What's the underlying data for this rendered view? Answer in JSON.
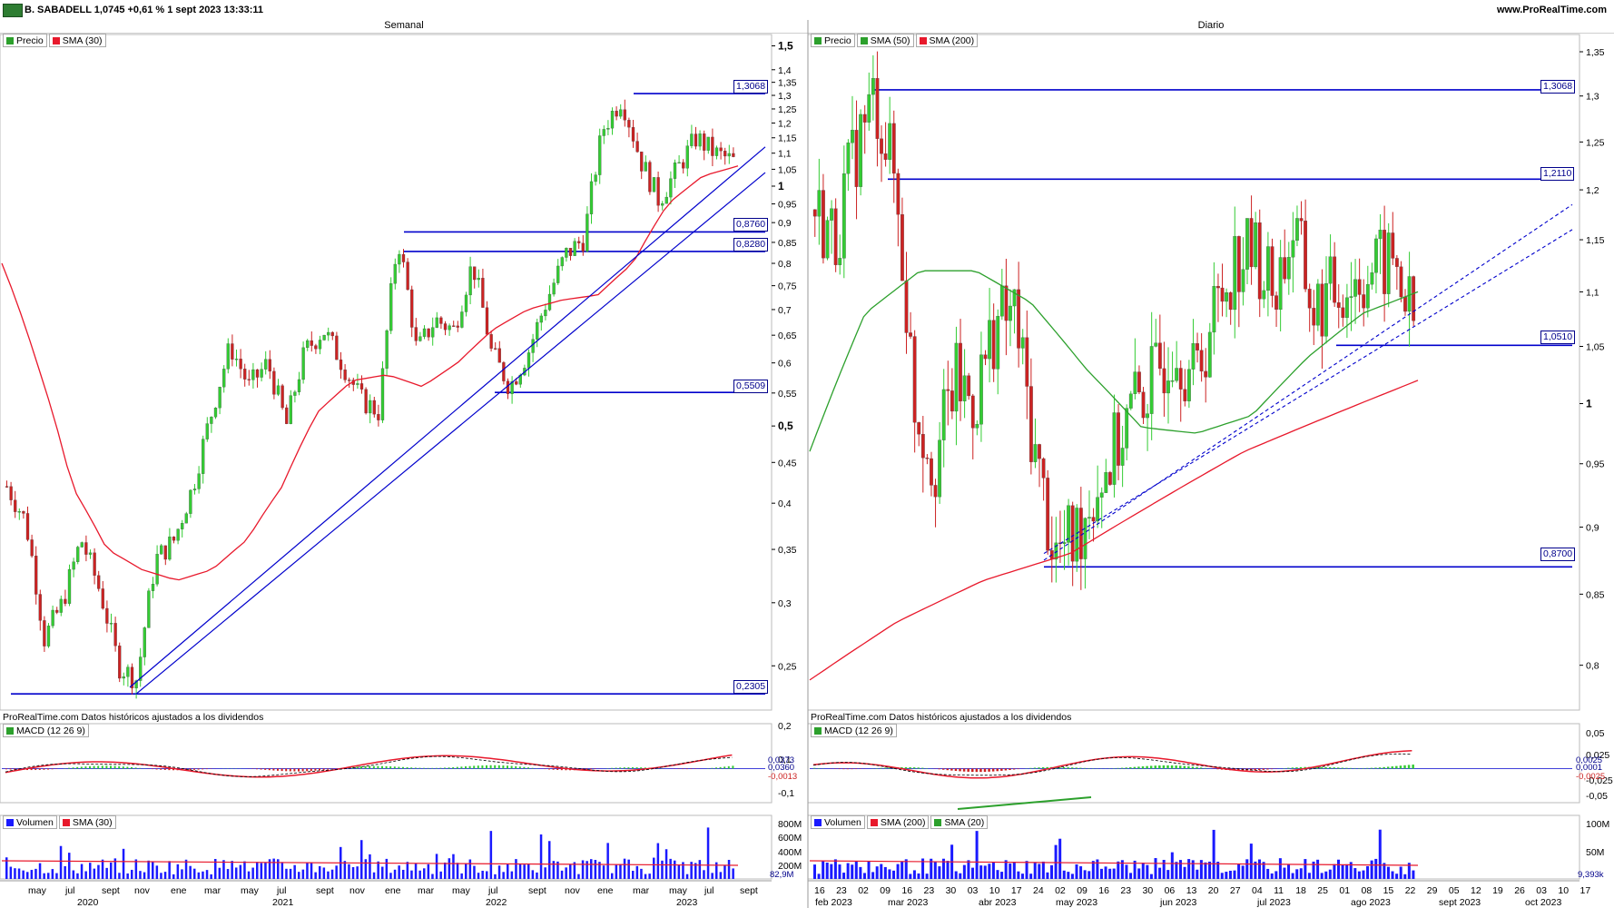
{
  "header": {
    "instrument_line": "B. SABADELL 1,0745 +0,61 % 1 sept 2023 13:33:11",
    "site": "www.ProRealTime.com"
  },
  "source_note": "ProRealTime.com Datos históricos ajustados a los dividendos",
  "colors": {
    "up": "#33cc33",
    "down": "#cc2222",
    "sma_red": "#e8192c",
    "sma_green": "#2ca02c",
    "hline": "#0000cc",
    "volume": "#1a1aff"
  },
  "weekly": {
    "panel_title": "Semanal",
    "legend": [
      "Precio",
      "SMA (30)"
    ],
    "price_axis": [
      "1,5",
      "1,4",
      "1,35",
      "1,3",
      "1,25",
      "1,2",
      "1,15",
      "1,1",
      "1,05",
      "1",
      "0,95",
      "0,9",
      "0,85",
      "0,8",
      "0,75",
      "0,7",
      "0,65",
      "0,6",
      "0,55",
      "0,5",
      "0,45",
      "0,4",
      "0,35",
      "0,3",
      "0,25"
    ],
    "hlines": [
      "1,3068",
      "0,8760",
      "0,8280",
      "0,5509",
      "0,2305"
    ],
    "macd_legend": "MACD (12 26 9)",
    "macd_axis": [
      "0,2",
      "0,1",
      "-0,1"
    ],
    "macd_labels": [
      "0,0373",
      "0,0360",
      "-0,0013"
    ],
    "volume_legend": [
      "Volumen",
      "SMA (30)"
    ],
    "volume_axis": [
      "800M",
      "600M",
      "400M",
      "200M"
    ],
    "volume_last": "82,9M",
    "months": [
      "may",
      "jul",
      "sept",
      "nov",
      "ene",
      "mar",
      "may",
      "jul",
      "sept",
      "nov",
      "ene",
      "mar",
      "may",
      "jul",
      "sept",
      "nov",
      "ene",
      "mar",
      "may",
      "jul",
      "sept"
    ],
    "years": [
      "2020",
      "2021",
      "2022",
      "2023"
    ]
  },
  "daily": {
    "panel_title": "Diario",
    "legend": [
      "Precio",
      "SMA (50)",
      "SMA (200)"
    ],
    "price_axis": [
      "1,35",
      "1,3",
      "1,25",
      "1,2",
      "1,15",
      "1,1",
      "1,05",
      "1",
      "0,95",
      "0,9",
      "0,85",
      "0,8"
    ],
    "hlines": [
      "1,3068",
      "1,2110",
      "1,0510",
      "0,8700"
    ],
    "macd_legend": "MACD (12 26 9)",
    "macd_axis": [
      "0,05",
      "0,025",
      "-0,025",
      "-0,05"
    ],
    "macd_labels": [
      "0,0025",
      "0,0001",
      "-0,0025"
    ],
    "volume_legend": [
      "Volumen",
      "SMA (200)",
      "SMA (20)"
    ],
    "volume_axis": [
      "100M",
      "50M"
    ],
    "volume_last": "9,393k",
    "days": [
      "16",
      "23",
      "02",
      "09",
      "16",
      "23",
      "30",
      "03",
      "10",
      "17",
      "24",
      "02",
      "09",
      "16",
      "23",
      "30",
      "06",
      "13",
      "20",
      "27",
      "04",
      "11",
      "18",
      "25",
      "01",
      "08",
      "15",
      "22",
      "29",
      "05",
      "12",
      "19",
      "26",
      "03",
      "10",
      "17"
    ],
    "months": [
      "feb 2023",
      "mar 2023",
      "abr 2023",
      "may 2023",
      "jun 2023",
      "jul 2023",
      "ago 2023",
      "sept 2023",
      "oct 2023"
    ]
  },
  "chart_data": [
    {
      "type": "candlestick",
      "title": "Semanal",
      "scale": "log",
      "ylim": [
        0.22,
        1.55
      ],
      "series": [
        {
          "name": "Precio",
          "anchor_values": [
            0.42,
            0.38,
            0.27,
            0.3,
            0.36,
            0.31,
            0.25,
            0.24,
            0.34,
            0.36,
            0.42,
            0.52,
            0.63,
            0.56,
            0.6,
            0.5,
            0.62,
            0.66,
            0.6,
            0.54,
            0.52,
            0.86,
            0.62,
            0.68,
            0.66,
            0.8,
            0.62,
            0.56,
            0.62,
            0.72,
            0.82,
            0.86,
            1.18,
            1.29,
            1.08,
            0.96,
            1.05,
            1.15,
            1.1,
            1.0745
          ]
        },
        {
          "name": "SMA (30)",
          "anchor_values": [
            0.8,
            0.6,
            0.42,
            0.35,
            0.33,
            0.32,
            0.33,
            0.36,
            0.42,
            0.52,
            0.57,
            0.58,
            0.56,
            0.6,
            0.66,
            0.7,
            0.72,
            0.73,
            0.8,
            0.95,
            1.03,
            1.06
          ]
        }
      ],
      "hlines": [
        1.3068,
        0.876,
        0.828,
        0.5509,
        0.2305
      ]
    },
    {
      "type": "candlestick",
      "title": "Diario",
      "scale": "log",
      "ylim": [
        0.77,
        1.37
      ],
      "series": [
        {
          "name": "Precio",
          "anchor_values": [
            1.18,
            1.15,
            1.24,
            1.3,
            1.21,
            1.0,
            0.95,
            1.02,
            1.0,
            1.07,
            1.08,
            0.96,
            0.88,
            0.89,
            0.93,
            0.96,
            1.0,
            1.02,
            1.06,
            1.02,
            1.08,
            1.13,
            1.14,
            1.1,
            1.16,
            1.08,
            1.1,
            1.11,
            1.12,
            1.13,
            1.07
          ]
        },
        {
          "name": "SMA (50)",
          "anchor_values": [
            0.96,
            1.08,
            1.12,
            1.12,
            1.09,
            1.03,
            0.98,
            0.975,
            0.99,
            1.04,
            1.08,
            1.1
          ]
        },
        {
          "name": "SMA (200)",
          "anchor_values": [
            0.79,
            0.83,
            0.86,
            0.88,
            0.92,
            0.96,
            0.99,
            1.02
          ]
        }
      ],
      "hlines": [
        1.3068,
        1.211,
        1.051,
        0.87
      ]
    }
  ]
}
